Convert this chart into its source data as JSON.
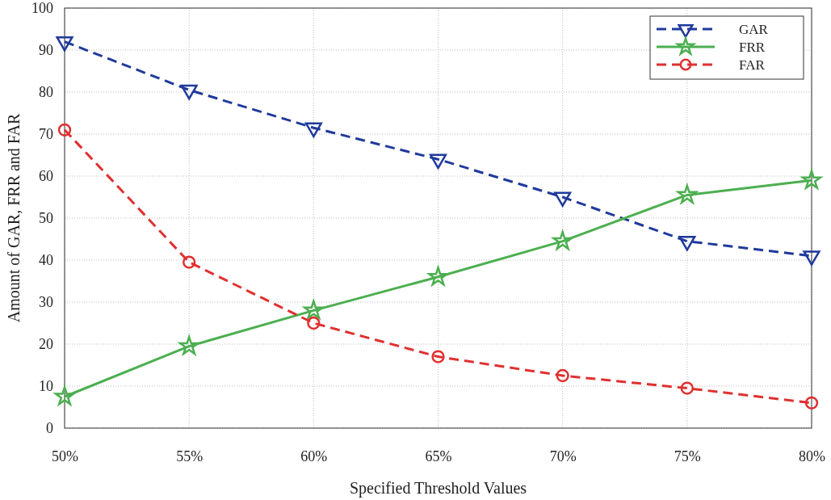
{
  "chart_data": {
    "type": "line",
    "xlabel": "Specified Threshold Values",
    "ylabel": "Amount of GAR, FRR and FAR",
    "categories": [
      "50%",
      "55%",
      "60%",
      "65%",
      "70%",
      "75%",
      "80%"
    ],
    "ylim": [
      0,
      100
    ],
    "yticks": [
      0,
      10,
      20,
      30,
      40,
      50,
      60,
      70,
      80,
      90,
      100
    ],
    "grid": true,
    "legend": "top right",
    "series": [
      {
        "name": "GAR",
        "color": "#1f3a9c",
        "marker": "triangle",
        "line_style": "dashed",
        "values": [
          92,
          80.5,
          71.5,
          64,
          55,
          44.5,
          41
        ]
      },
      {
        "name": "FRR",
        "color": "#4caf50",
        "marker": "star",
        "line_style": "solid",
        "values": [
          7.5,
          19.5,
          28,
          36,
          44.5,
          55.5,
          59
        ]
      },
      {
        "name": "FAR",
        "color": "#e03030",
        "marker": "circle",
        "line_style": "dashed",
        "values": [
          71,
          39.5,
          25,
          17,
          12.5,
          9.5,
          6
        ]
      }
    ]
  }
}
